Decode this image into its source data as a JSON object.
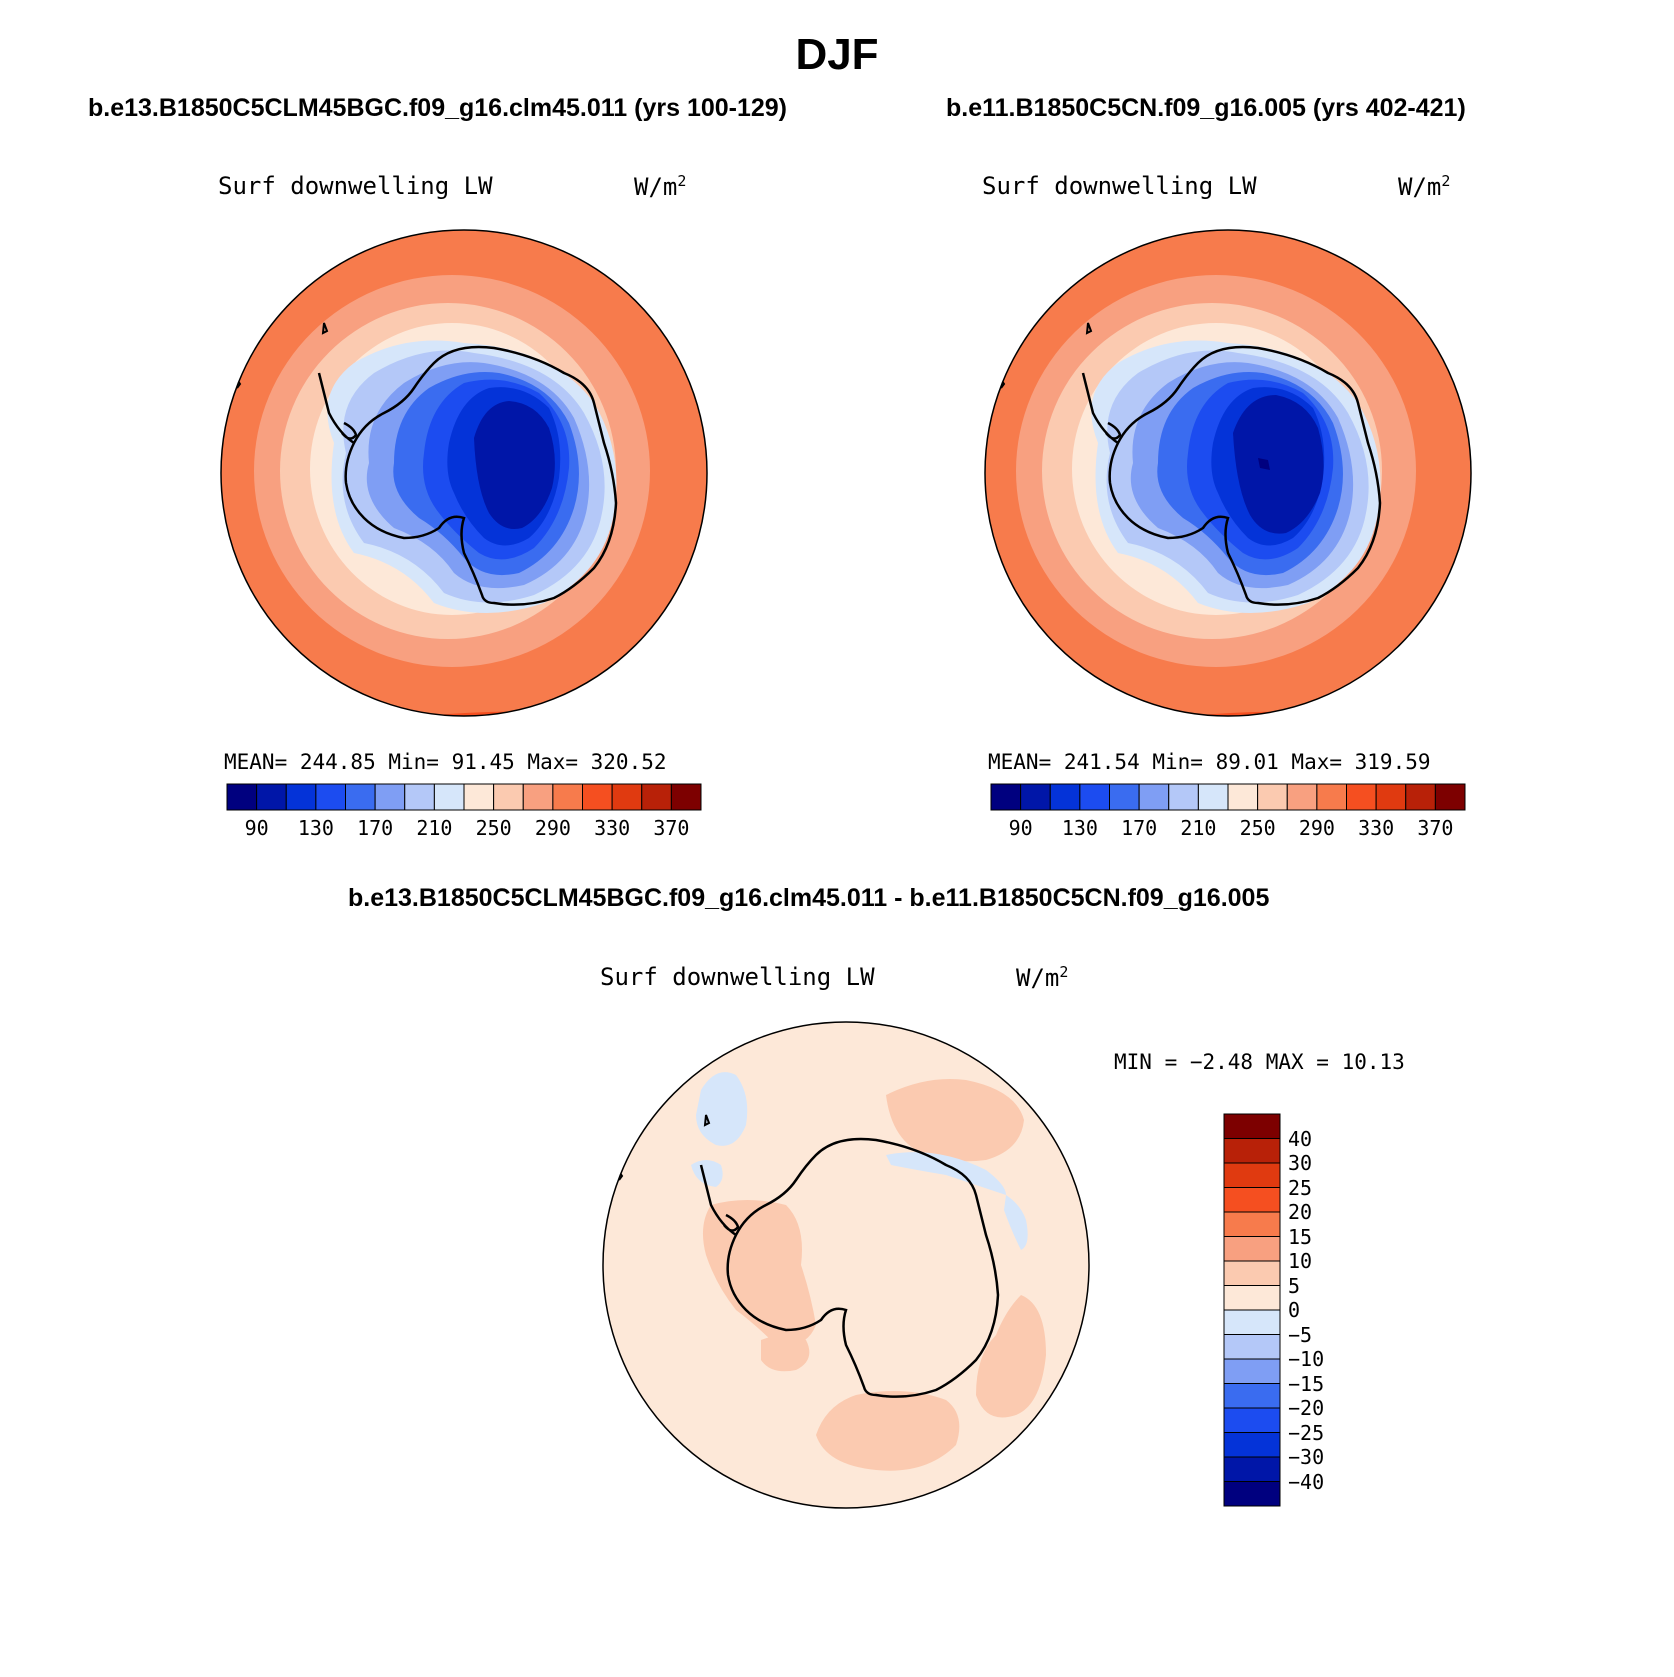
{
  "figure": {
    "title": "DJF",
    "diff_title": "b.e13.B1850C5CLM45BGC.f09_g16.clm45.011 - b.e11.B1850C5CN.f09_g16.005"
  },
  "panels": [
    {
      "case_title": "b.e13.B1850C5CLM45BGC.f09_g16.clm45.011 (yrs 100-129)",
      "variable": "Surf downwelling LW",
      "units_base": "W/m",
      "units_exp": "2",
      "stats": "MEAN= 244.85   Min=   91.45   Max= 320.52"
    },
    {
      "case_title": "b.e11.B1850C5CN.f09_g16.005 (yrs 402-421)",
      "variable": "Surf downwelling LW",
      "units_base": "W/m",
      "units_exp": "2",
      "stats": "MEAN= 241.54   Min=   89.01   Max= 319.59"
    }
  ],
  "diff_panel": {
    "variable": "Surf downwelling LW",
    "units_base": "W/m",
    "units_exp": "2",
    "stats": "MIN =   −2.48 MAX =   10.13"
  },
  "colorbar_abs": {
    "colors": [
      "#00007f",
      "#0016a8",
      "#0433d8",
      "#1c4cf0",
      "#3a6cf0",
      "#7f9ef4",
      "#b4c8f8",
      "#d6e6fa",
      "#fde8d8",
      "#fbcab0",
      "#f8a080",
      "#f77b4c",
      "#f54f20",
      "#e03a10",
      "#b82108",
      "#7d0000"
    ],
    "tick_labels": [
      "90",
      "130",
      "170",
      "210",
      "250",
      "290",
      "330",
      "370"
    ]
  },
  "colorbar_diff": {
    "colors": [
      "#7d0000",
      "#b82108",
      "#e03a10",
      "#f54f20",
      "#f77b4c",
      "#f8a080",
      "#fbcab0",
      "#fde8d8",
      "#d6e6fa",
      "#b4c8f8",
      "#7f9ef4",
      "#3a6cf0",
      "#1c4cf0",
      "#0433d8",
      "#0016a8",
      "#00007f"
    ],
    "tick_labels": [
      "40",
      "30",
      "25",
      "20",
      "15",
      "10",
      "5",
      "0",
      "−5",
      "−10",
      "−15",
      "−20",
      "−25",
      "−30",
      "−40"
    ]
  },
  "chart_data": [
    {
      "type": "heatmap",
      "projection": "south-polar-stereographic",
      "title": "b.e13.B1850C5CLM45BGC.f09_g16.clm45.011 (yrs 100-129)",
      "variable": "Surf downwelling LW",
      "units": "W/m2",
      "mean": 244.85,
      "min": 91.45,
      "max": 320.52,
      "contour_levels": [
        90,
        110,
        130,
        150,
        170,
        190,
        210,
        230,
        250,
        270,
        290,
        310,
        330,
        350,
        370
      ]
    },
    {
      "type": "heatmap",
      "projection": "south-polar-stereographic",
      "title": "b.e11.B1850C5CN.f09_g16.005 (yrs 402-421)",
      "variable": "Surf downwelling LW",
      "units": "W/m2",
      "mean": 241.54,
      "min": 89.01,
      "max": 319.59,
      "contour_levels": [
        90,
        110,
        130,
        150,
        170,
        190,
        210,
        230,
        250,
        270,
        290,
        310,
        330,
        350,
        370
      ]
    },
    {
      "type": "heatmap",
      "projection": "south-polar-stereographic",
      "title": "b.e13.B1850C5CLM45BGC.f09_g16.clm45.011 - b.e11.B1850C5CN.f09_g16.005",
      "variable": "Surf downwelling LW",
      "units": "W/m2",
      "min": -2.48,
      "max": 10.13,
      "contour_levels": [
        -40,
        -30,
        -25,
        -20,
        -15,
        -10,
        -5,
        0,
        5,
        10,
        15,
        20,
        25,
        30,
        40
      ]
    }
  ]
}
